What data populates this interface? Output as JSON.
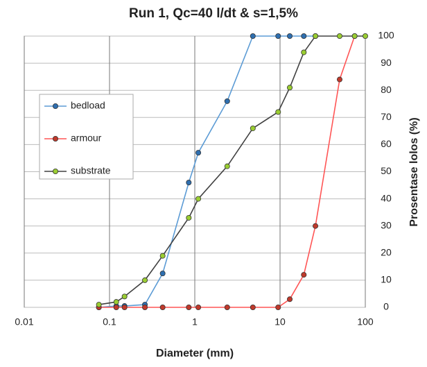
{
  "chart_data": {
    "type": "line",
    "title": "Run 1, Qc=40 l/dt & s=1,5%",
    "x_label": "Diameter (mm)",
    "y_label": "Prosentase lolos (%)",
    "xscale": "log",
    "xlim": [
      0.01,
      100
    ],
    "xticks": [
      0.01,
      0.1,
      1,
      10,
      100
    ],
    "ylim": [
      0,
      100
    ],
    "yticks": [
      0,
      10,
      20,
      30,
      40,
      50,
      60,
      70,
      80,
      90,
      100
    ],
    "grid": true,
    "legend": "left",
    "series": [
      {
        "name": "bedload",
        "color": "#5b9bd5",
        "marker_color": "#2e6fb0",
        "x": [
          0.075,
          0.12,
          0.15,
          0.26,
          0.42,
          0.85,
          1.1,
          2.4,
          4.8,
          9.5,
          13,
          19,
          26
        ],
        "values": [
          0,
          0.5,
          0.5,
          1,
          12.5,
          46,
          57,
          76,
          100,
          100,
          100,
          100,
          100
        ]
      },
      {
        "name": "armour",
        "color": "#ff5555",
        "marker_color": "#c0392b",
        "x": [
          0.075,
          0.12,
          0.15,
          0.26,
          0.42,
          0.85,
          1.1,
          2.4,
          4.8,
          9.5,
          13,
          19,
          26,
          50,
          75
        ],
        "values": [
          0,
          0,
          0,
          0,
          0,
          0,
          0,
          0,
          0,
          0,
          3,
          12,
          30,
          84,
          100
        ]
      },
      {
        "name": "substrate",
        "color": "#404040",
        "marker_color": "#9acd32",
        "x": [
          0.075,
          0.12,
          0.15,
          0.26,
          0.42,
          0.85,
          1.1,
          2.4,
          4.8,
          9.5,
          13,
          19,
          26,
          50,
          75,
          100
        ],
        "values": [
          1,
          2,
          4,
          10,
          19,
          33,
          40,
          52,
          66,
          72,
          81,
          94,
          100,
          100,
          100,
          100
        ]
      }
    ]
  }
}
